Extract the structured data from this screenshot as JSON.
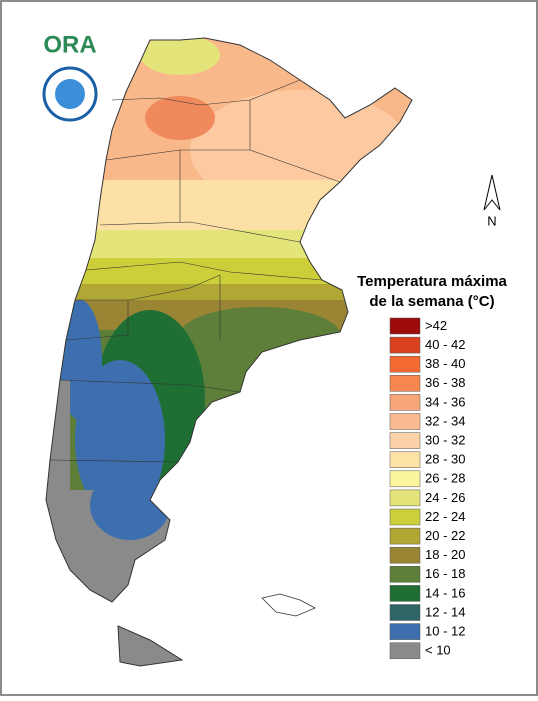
{
  "logo": {
    "text": "ORA"
  },
  "north_arrow": {
    "label": "N"
  },
  "legend": {
    "title": [
      "Temperatura máxima",
      "de la semana (°C)"
    ],
    "items": [
      {
        "label": ">42",
        "color": "#9c0a0a"
      },
      {
        "label": "40 - 42",
        "color": "#d8401e"
      },
      {
        "label": "38 - 40",
        "color": "#f46a32"
      },
      {
        "label": "36 - 38",
        "color": "#f8864f"
      },
      {
        "label": "34 - 36",
        "color": "#f9a57a"
      },
      {
        "label": "32 - 34",
        "color": "#fbbb90"
      },
      {
        "label": "30 - 32",
        "color": "#fcd2a8"
      },
      {
        "label": "28 - 30",
        "color": "#fde4a6"
      },
      {
        "label": "26 - 28",
        "color": "#fbf59e"
      },
      {
        "label": "24 - 26",
        "color": "#e3e57a"
      },
      {
        "label": "22 - 24",
        "color": "#cdcf3a"
      },
      {
        "label": "20 - 22",
        "color": "#b0a734"
      },
      {
        "label": "18 - 20",
        "color": "#9a8535"
      },
      {
        "label": "16 - 18",
        "color": "#5d7f39"
      },
      {
        "label": "14 - 16",
        "color": "#1f6f35"
      },
      {
        "label": "12 - 14",
        "color": "#2f6566"
      },
      {
        "label": "10 - 12",
        "color": "#3d6faf"
      },
      {
        "label": "< 10",
        "color": "#8a8a8a"
      }
    ]
  }
}
